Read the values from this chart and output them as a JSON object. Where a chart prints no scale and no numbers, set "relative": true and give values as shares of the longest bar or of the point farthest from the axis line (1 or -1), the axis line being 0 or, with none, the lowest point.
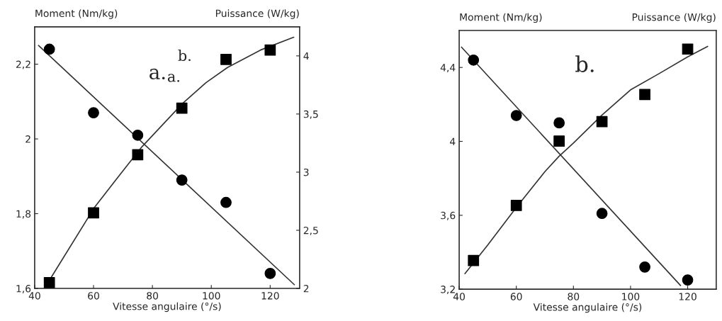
{
  "chart_data": [
    {
      "type": "scatter",
      "xlabel": "Vitesse angulaire (°/s)",
      "ylabel": "Moment (Nm/kg)",
      "y2label": "Puissance (W/kg)",
      "annotations": [
        "a.",
        "a.",
        "b."
      ],
      "xlim": [
        40,
        130
      ],
      "xticks": [
        40,
        60,
        80,
        100,
        120
      ],
      "ylim": [
        1.6,
        2.3
      ],
      "yticks": [
        {
          "value": 1.6,
          "label": "1,6"
        },
        {
          "value": 1.8,
          "label": "1,8"
        },
        2,
        {
          "value": 2.2,
          "label": "2,2"
        }
      ],
      "y2lim": [
        2,
        4.25
      ],
      "y2ticks": [
        2,
        {
          "value": 2.5,
          "label": "2,5"
        },
        3,
        {
          "value": 3.5,
          "label": "3,5"
        },
        4
      ],
      "grid": false,
      "legend": false,
      "series": [
        {
          "marker": "circle",
          "color": "#000000",
          "x": [
            45,
            60,
            75,
            90,
            105,
            120
          ],
          "values": [
            2.24,
            2.07,
            2.01,
            1.89,
            1.83,
            1.64
          ]
        },
        {
          "type": "line",
          "marker": "none",
          "line_style": "solid",
          "color": "#333333",
          "x": [
            41.3,
            128.2
          ],
          "values": [
            2.25,
            1.61
          ]
        },
        {
          "marker": "square",
          "color": "#000000",
          "axis": "y2",
          "x": [
            45,
            60,
            75,
            90,
            105,
            120
          ],
          "values": [
            2.05,
            2.65,
            3.15,
            3.55,
            3.97,
            4.05
          ]
        },
        {
          "type": "line",
          "marker": "none",
          "line_style": "solid",
          "color": "#333333",
          "axis": "y2",
          "x": [
            45.5,
            60.4,
            68.4,
            76.5,
            90.2,
            98.2,
            105.5,
            116.7,
            128
          ],
          "values": [
            2.09,
            2.7,
            2.96,
            3.22,
            3.59,
            3.77,
            3.9,
            4.05,
            4.16
          ]
        }
      ]
    },
    {
      "type": "scatter",
      "xlabel": "Vitesse angulaire (°/s)",
      "ylabel": "Moment (Nm/kg)",
      "annotations": [
        "b."
      ],
      "xlim": [
        40,
        130
      ],
      "xticks": [
        40,
        60,
        80,
        100,
        120
      ],
      "ylim": [
        3.2,
        4.6
      ],
      "yticks": [
        {
          "value": 3.2,
          "label": "3,2"
        },
        {
          "value": 3.6,
          "label": "3,6"
        },
        4,
        {
          "value": 4.4,
          "label": "4,4"
        }
      ],
      "grid": false,
      "legend": false,
      "series": [
        {
          "marker": "circle",
          "color": "#000000",
          "x": [
            45,
            60,
            75,
            90,
            105,
            120
          ],
          "values": [
            4.44,
            4.14,
            4.1,
            3.61,
            3.32,
            3.25
          ]
        },
        {
          "type": "line",
          "marker": "none",
          "line_style": "solid",
          "color": "#333333",
          "x": [
            40.8,
            117.5
          ],
          "values": [
            4.51,
            3.22
          ]
        }
      ]
    },
    {
      "type": "scatter",
      "y2label": "Puissance (W/kg)",
      "relative": true,
      "xlim": [
        40,
        130
      ],
      "tick_labels": false,
      "grid": false,
      "legend": false,
      "series": [
        {
          "marker": "square",
          "color": "#000000",
          "x": [
            45,
            60,
            75,
            90,
            105,
            120
          ],
          "values": [
            0.118,
            0.345,
            0.61,
            0.69,
            0.802,
            0.989
          ]
        },
        {
          "type": "line",
          "marker": "none",
          "line_style": "solid",
          "color": "#333333",
          "x": [
            42,
            50,
            60,
            70,
            75,
            80,
            90,
            100,
            110,
            120,
            127
          ],
          "values": [
            0.064,
            0.182,
            0.337,
            0.484,
            0.548,
            0.602,
            0.717,
            0.821,
            0.888,
            0.957,
            1
          ]
        }
      ]
    }
  ]
}
